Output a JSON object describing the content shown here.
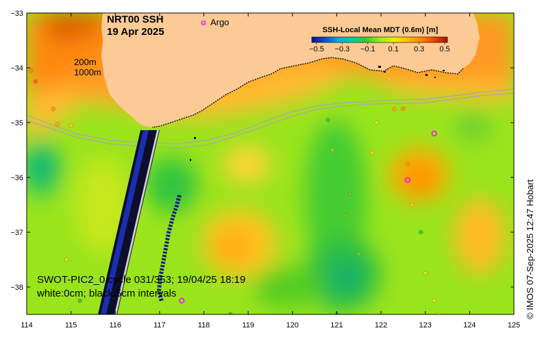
{
  "title": {
    "line1": "NRT00 SSH",
    "line2": "19 Apr 2025"
  },
  "legend": {
    "argo_marker": "o",
    "argo_label": "Argo"
  },
  "isobaths": {
    "depth1": "200m",
    "depth2": "1000m"
  },
  "colorbar": {
    "title": "SSH-Local Mean MDT (0.6m) [m]",
    "ticks": [
      "−0.5",
      "−0.3",
      "−0.1",
      "0.1",
      "0.3",
      "0.5"
    ],
    "colors": [
      "#001a7a",
      "#0a4fd0",
      "#00b0e0",
      "#00d0a0",
      "#33cc33",
      "#99ee22",
      "#e8ee00",
      "#ffc000",
      "#ff8a00",
      "#ee4400",
      "#aa1100"
    ]
  },
  "axes": {
    "x_ticks": [
      "114",
      "115",
      "116",
      "117",
      "118",
      "119",
      "120",
      "121",
      "122",
      "123",
      "124",
      "125"
    ],
    "y_ticks": [
      "−33",
      "−34",
      "−35",
      "−36",
      "−37",
      "−38"
    ]
  },
  "swot": {
    "line1": "SWOT-PIC2_0 cycle 031/353; 19/04/25 18:19",
    "line2": "white:0cm; black:5cm intervals"
  },
  "credit": "© IMOS 07-Sep-2025 12:47 Hobart",
  "colors": {
    "land": "#fccb95",
    "argo": "#ee22ee",
    "isobath": "#a8a8a8"
  },
  "chart_data": {
    "type": "map",
    "lon_range": [
      114,
      125
    ],
    "lat_range": [
      -38.5,
      -33
    ],
    "argo_floats": [
      {
        "lon": 123.2,
        "lat": -35.2
      },
      {
        "lon": 122.6,
        "lat": -36.05
      },
      {
        "lon": 117.5,
        "lat": -38.25
      }
    ],
    "drifters": [
      {
        "lon": 114.0,
        "lat": -35.0,
        "c": "#ddee00"
      },
      {
        "lon": 114.1,
        "lat": -34.05,
        "c": "#ff8800"
      },
      {
        "lon": 114.2,
        "lat": -34.25,
        "c": "#ff6600"
      },
      {
        "lon": 114.6,
        "lat": -34.75,
        "c": "#ff9900"
      },
      {
        "lon": 114.7,
        "lat": -35.03,
        "c": "#ffaa00"
      },
      {
        "lon": 115.0,
        "lat": -35.05,
        "c": "#ffcc00"
      },
      {
        "lon": 114.9,
        "lat": -37.5,
        "c": "#ccee00"
      },
      {
        "lon": 115.2,
        "lat": -38.25,
        "c": "#44cc22"
      },
      {
        "lon": 118.6,
        "lat": -38.5,
        "c": "#33bb33"
      },
      {
        "lon": 120.8,
        "lat": -34.95,
        "c": "#44cc22"
      },
      {
        "lon": 120.9,
        "lat": -35.5,
        "c": "#88dd11"
      },
      {
        "lon": 121.0,
        "lat": -38.5,
        "c": "#33bb33"
      },
      {
        "lon": 121.2,
        "lat": -36.7,
        "c": "#66cc22"
      },
      {
        "lon": 121.3,
        "lat": -36.3,
        "c": "#66cc22"
      },
      {
        "lon": 121.5,
        "lat": -37.4,
        "c": "#66cc22"
      },
      {
        "lon": 121.8,
        "lat": -35.55,
        "c": "#ffcc00"
      },
      {
        "lon": 121.9,
        "lat": -35.0,
        "c": "#ccee00"
      },
      {
        "lon": 122.3,
        "lat": -34.75,
        "c": "#ffaa00"
      },
      {
        "lon": 122.5,
        "lat": -34.75,
        "c": "#ff9900"
      },
      {
        "lon": 122.0,
        "lat": -38.5,
        "c": "#ccee00"
      },
      {
        "lon": 122.6,
        "lat": -35.75,
        "c": "#ff9900"
      },
      {
        "lon": 122.7,
        "lat": -36.5,
        "c": "#ffcc00"
      },
      {
        "lon": 122.9,
        "lat": -37.0,
        "c": "#44cc22"
      },
      {
        "lon": 123.0,
        "lat": -37.75,
        "c": "#ccee00"
      },
      {
        "lon": 123.2,
        "lat": -38.25,
        "c": "#ccee00"
      },
      {
        "lon": 123.3,
        "lat": -38.5,
        "c": "#ddee00"
      }
    ]
  }
}
